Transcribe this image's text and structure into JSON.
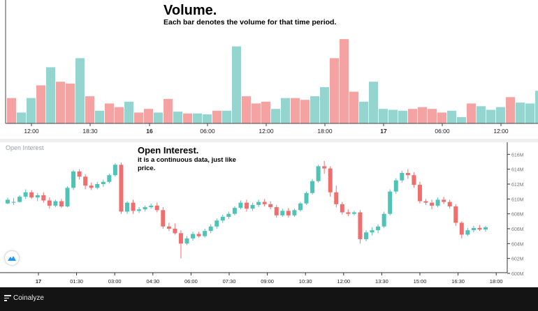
{
  "volume": {
    "title": "Volume.",
    "subtitle": "Each bar denotes the volume for that time period.",
    "up_color": "#95d5d0",
    "down_color": "#f4a3a2"
  },
  "open_interest": {
    "label": "Open Interest",
    "title": "Open Interest.",
    "subtitle": "it is a continuous data, just like price.",
    "up_color": "#4fc3b6",
    "down_color": "#ef6f6f"
  },
  "footer": {
    "brand": "Coinalyze"
  },
  "chart_data": [
    {
      "type": "bar",
      "title": "Volume.",
      "xlabel": "",
      "ylabel": "",
      "ylim": [
        0,
        100
      ],
      "x_tick_labels": [
        "12:00",
        "18:30",
        "16",
        "06:00",
        "12:00",
        "18:00",
        "17",
        "06:00",
        "12:00"
      ],
      "values": [
        28,
        12,
        28,
        42,
        62,
        46,
        44,
        72,
        30,
        14,
        22,
        18,
        24,
        12,
        16,
        12,
        27,
        13,
        11,
        11,
        10,
        14,
        14,
        85,
        30,
        22,
        24,
        16,
        28,
        28,
        26,
        30,
        40,
        72,
        93,
        35,
        24,
        46,
        16,
        15,
        14,
        16,
        18,
        16,
        12,
        14,
        7,
        22,
        19,
        15,
        18,
        29,
        23,
        22,
        36
      ],
      "colors": [
        "d",
        "u",
        "u",
        "d",
        "u",
        "d",
        "d",
        "u",
        "d",
        "u",
        "d",
        "d",
        "u",
        "d",
        "d",
        "u",
        "d",
        "u",
        "d",
        "u",
        "u",
        "d",
        "u",
        "u",
        "d",
        "d",
        "d",
        "u",
        "u",
        "d",
        "d",
        "u",
        "u",
        "d",
        "d",
        "d",
        "u",
        "u",
        "u",
        "u",
        "u",
        "d",
        "d",
        "d",
        "d",
        "u",
        "u",
        "d",
        "u",
        "u",
        "u",
        "d",
        "u",
        "u",
        "u"
      ]
    },
    {
      "type": "candlestick",
      "title": "Open Interest.",
      "xlabel": "",
      "ylabel": "",
      "ylim": [
        600,
        616.5
      ],
      "y_tick_labels": [
        "616M",
        "614M",
        "612M",
        "610M",
        "608M",
        "606M",
        "604M",
        "602M",
        "600M"
      ],
      "x_tick_labels": [
        "17",
        "01:30",
        "03:00",
        "04:30",
        "06:00",
        "07:30",
        "09:00",
        "10:30",
        "12:00",
        "13:30",
        "15:00",
        "16:30",
        "18:00"
      ],
      "x_tick_values": [
        0.5,
        2,
        3.5,
        5,
        6.5,
        8,
        9.5,
        11,
        12.5,
        14,
        15.5,
        17,
        18.5
      ],
      "series": [
        [
          609.4,
          610.2,
          609.3,
          609.9
        ],
        [
          609.5,
          610.1,
          609.2,
          609.6
        ],
        [
          609.6,
          610.5,
          609.5,
          610.3
        ],
        [
          610.3,
          611.3,
          610.0,
          610.9
        ],
        [
          610.9,
          611.2,
          610.0,
          610.2
        ],
        [
          610.2,
          610.8,
          609.7,
          610.5
        ],
        [
          610.5,
          610.9,
          609.5,
          609.8
        ],
        [
          609.8,
          610.2,
          608.7,
          609.1
        ],
        [
          609.1,
          609.9,
          608.9,
          609.7
        ],
        [
          609.7,
          610.0,
          608.8,
          609.0
        ],
        [
          609.0,
          611.7,
          608.9,
          611.5
        ],
        [
          611.5,
          613.9,
          611.2,
          613.7
        ],
        [
          613.7,
          614.0,
          612.6,
          613.0
        ],
        [
          613.0,
          613.3,
          611.3,
          611.8
        ],
        [
          611.8,
          612.2,
          611.2,
          611.5
        ],
        [
          611.5,
          612.3,
          611.3,
          612.0
        ],
        [
          612.0,
          612.6,
          611.6,
          612.3
        ],
        [
          612.3,
          613.4,
          612.1,
          613.2
        ],
        [
          613.2,
          614.8,
          613.0,
          614.6
        ],
        [
          614.6,
          614.9,
          608.0,
          608.3
        ],
        [
          608.3,
          609.7,
          608.0,
          609.5
        ],
        [
          609.5,
          609.9,
          608.0,
          608.4
        ],
        [
          608.4,
          608.9,
          608.1,
          608.6
        ],
        [
          608.6,
          609.1,
          608.3,
          608.9
        ],
        [
          608.9,
          609.4,
          608.7,
          609.1
        ],
        [
          609.1,
          609.5,
          608.2,
          608.5
        ],
        [
          608.5,
          608.9,
          606.0,
          606.3
        ],
        [
          606.3,
          606.8,
          605.7,
          606.0
        ],
        [
          606.0,
          606.7,
          605.2,
          605.4
        ],
        [
          605.4,
          605.8,
          602.0,
          604.0
        ],
        [
          604.0,
          605.0,
          603.8,
          604.7
        ],
        [
          604.7,
          605.6,
          604.4,
          605.3
        ],
        [
          605.3,
          605.6,
          604.8,
          605.0
        ],
        [
          605.0,
          606.0,
          604.8,
          605.7
        ],
        [
          605.7,
          606.6,
          605.4,
          606.3
        ],
        [
          606.3,
          607.4,
          606.0,
          607.1
        ],
        [
          607.1,
          607.9,
          606.8,
          607.6
        ],
        [
          607.6,
          608.3,
          607.3,
          608.0
        ],
        [
          608.0,
          609.0,
          607.8,
          608.8
        ],
        [
          608.8,
          609.8,
          608.6,
          609.5
        ],
        [
          609.5,
          609.9,
          608.3,
          608.7
        ],
        [
          608.7,
          609.5,
          608.4,
          609.2
        ],
        [
          609.2,
          609.9,
          608.9,
          609.6
        ],
        [
          609.6,
          610.0,
          609.0,
          609.3
        ],
        [
          609.3,
          609.7,
          608.6,
          608.9
        ],
        [
          608.9,
          609.2,
          607.5,
          607.8
        ],
        [
          607.8,
          608.7,
          607.6,
          608.4
        ],
        [
          608.4,
          608.8,
          607.5,
          607.8
        ],
        [
          607.8,
          608.7,
          607.6,
          608.5
        ],
        [
          608.5,
          609.6,
          608.3,
          609.4
        ],
        [
          609.4,
          611.0,
          609.2,
          610.8
        ],
        [
          610.8,
          612.7,
          610.6,
          612.4
        ],
        [
          612.4,
          614.6,
          612.2,
          614.4
        ],
        [
          614.4,
          615.1,
          613.4,
          614.1
        ],
        [
          614.1,
          614.4,
          610.3,
          610.9
        ],
        [
          610.9,
          611.8,
          608.9,
          609.3
        ],
        [
          609.3,
          609.6,
          607.9,
          608.2
        ],
        [
          608.2,
          608.6,
          607.7,
          608.0
        ],
        [
          608.0,
          608.4,
          607.8,
          608.2
        ],
        [
          608.2,
          608.5,
          604.0,
          604.6
        ],
        [
          604.6,
          605.8,
          604.3,
          605.5
        ],
        [
          605.5,
          606.2,
          605.1,
          605.8
        ],
        [
          605.8,
          606.6,
          605.4,
          606.3
        ],
        [
          606.3,
          608.3,
          606.1,
          608.0
        ],
        [
          608.0,
          611.3,
          607.8,
          611.0
        ],
        [
          611.0,
          612.8,
          610.7,
          612.5
        ],
        [
          612.5,
          613.8,
          612.2,
          613.5
        ],
        [
          613.5,
          614.0,
          612.7,
          613.2
        ],
        [
          613.2,
          613.6,
          611.5,
          611.9
        ],
        [
          611.9,
          612.3,
          609.4,
          609.7
        ],
        [
          609.7,
          610.0,
          609.2,
          609.5
        ],
        [
          609.5,
          609.9,
          608.6,
          609.1
        ],
        [
          609.1,
          610.2,
          608.9,
          609.9
        ],
        [
          609.9,
          610.3,
          609.3,
          609.6
        ],
        [
          609.6,
          609.9,
          608.7,
          609.0
        ],
        [
          609.0,
          609.3,
          606.4,
          606.8
        ],
        [
          606.8,
          607.0,
          604.7,
          605.2
        ],
        [
          605.2,
          606.1,
          605.0,
          605.8
        ],
        [
          605.8,
          606.4,
          605.5,
          606.1
        ],
        [
          606.1,
          606.5,
          605.7,
          605.9
        ],
        [
          605.9,
          606.4,
          605.6,
          606.2
        ]
      ]
    }
  ]
}
